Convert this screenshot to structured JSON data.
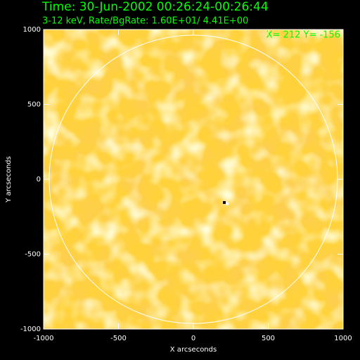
{
  "chart_data": {
    "type": "image",
    "title": "Time: 30-Jun-2002 00:26:24-00:26:44",
    "subtitle": "3-12 keV, Rate/BgRate:  1.60E+01/  4.41E+00",
    "annotation": "X=  212 Y= -156",
    "xlabel": "X arcseconds",
    "ylabel": "Y arcseconds",
    "xlim": [
      -1000,
      1000
    ],
    "ylim": [
      -1000,
      1000
    ],
    "xticks": [
      -1000,
      -500,
      0,
      500,
      1000
    ],
    "yticks": [
      -1000,
      -500,
      0,
      500,
      1000
    ]
  }
}
